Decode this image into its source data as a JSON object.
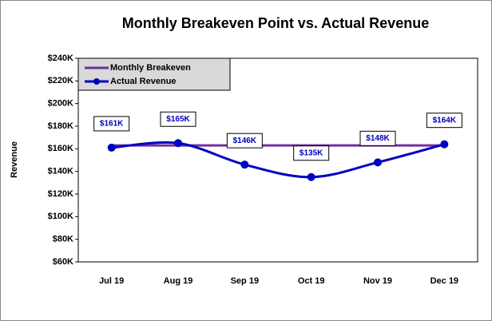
{
  "chart_data": {
    "type": "line",
    "title": "Monthly Breakeven Point vs. Actual Revenue",
    "y_label": "Revenue",
    "categories": [
      "Jul 19",
      "Aug 19",
      "Sep 19",
      "Oct 19",
      "Nov 19",
      "Dec 19"
    ],
    "series": [
      {
        "name": "Monthly Breakeven",
        "color": "#7030a0",
        "values": [
          163000,
          163000,
          163000,
          163000,
          163000,
          163000
        ]
      },
      {
        "name": "Actual Revenue",
        "color": "#0000c0",
        "values": [
          161000,
          165000,
          146000,
          135000,
          148000,
          164000
        ],
        "value_labels": [
          "$161K",
          "$165K",
          "$146K",
          "$135K",
          "$148K",
          "$164K"
        ]
      }
    ],
    "ylim": [
      60000,
      240000
    ],
    "yticks": [
      {
        "value": 60000,
        "label": "$60K"
      },
      {
        "value": 80000,
        "label": "$80K"
      },
      {
        "value": 100000,
        "label": "$100K"
      },
      {
        "value": 120000,
        "label": "$120K"
      },
      {
        "value": 140000,
        "label": "$140K"
      },
      {
        "value": 160000,
        "label": "$160K"
      },
      {
        "value": 180000,
        "label": "$180K"
      },
      {
        "value": 200000,
        "label": "$200K"
      },
      {
        "value": 220000,
        "label": "$220K"
      },
      {
        "value": 240000,
        "label": "$240K"
      }
    ],
    "legend": "upper left"
  }
}
